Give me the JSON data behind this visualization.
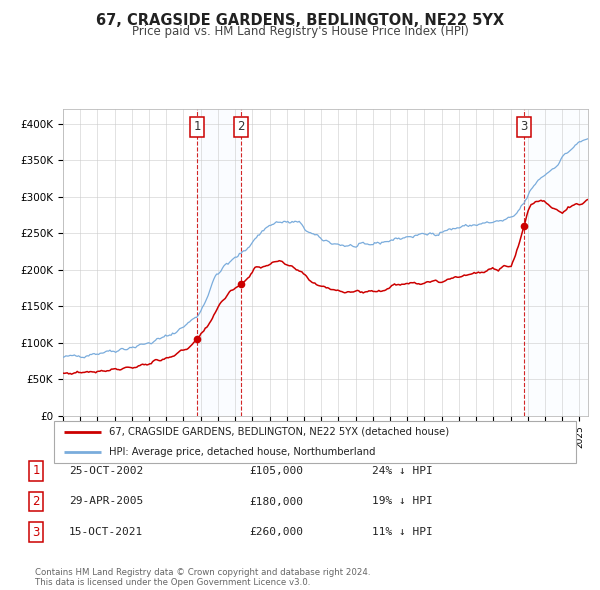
{
  "title": "67, CRAGSIDE GARDENS, BEDLINGTON, NE22 5YX",
  "subtitle": "Price paid vs. HM Land Registry's House Price Index (HPI)",
  "xlim_start": 1995.0,
  "xlim_end": 2025.5,
  "ylim": [
    0,
    420000
  ],
  "yticks": [
    0,
    50000,
    100000,
    150000,
    200000,
    250000,
    300000,
    350000,
    400000
  ],
  "ytick_labels": [
    "£0",
    "£50K",
    "£100K",
    "£150K",
    "£200K",
    "£250K",
    "£300K",
    "£350K",
    "£400K"
  ],
  "red_color": "#cc0000",
  "blue_color": "#7aacdc",
  "shade_color": "#ddeeff",
  "sale_dates": [
    2002.81,
    2005.33,
    2021.79
  ],
  "sale_prices": [
    105000,
    180000,
    260000
  ],
  "sale_labels": [
    "1",
    "2",
    "3"
  ],
  "legend_red_label": "67, CRAGSIDE GARDENS, BEDLINGTON, NE22 5YX (detached house)",
  "legend_blue_label": "HPI: Average price, detached house, Northumberland",
  "table_rows": [
    {
      "num": "1",
      "date": "25-OCT-2002",
      "price": "£105,000",
      "hpi": "24% ↓ HPI"
    },
    {
      "num": "2",
      "date": "29-APR-2005",
      "price": "£180,000",
      "hpi": "19% ↓ HPI"
    },
    {
      "num": "3",
      "date": "15-OCT-2021",
      "price": "£260,000",
      "hpi": "11% ↓ HPI"
    }
  ],
  "footer": "Contains HM Land Registry data © Crown copyright and database right 2024.\nThis data is licensed under the Open Government Licence v3.0.",
  "background_color": "#ffffff",
  "grid_color": "#cccccc"
}
